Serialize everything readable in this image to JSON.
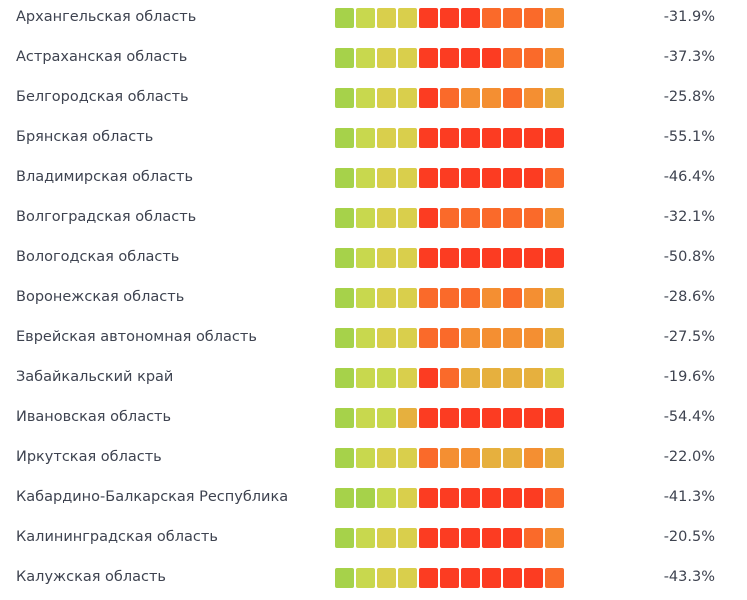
{
  "chart_data": {
    "type": "table",
    "columns": [
      "region",
      "color_scale",
      "change_percent"
    ],
    "palette": {
      "G": "#a6d24a",
      "L": "#c8d84e",
      "Y": "#d9cf4c",
      "A": "#e6b03e",
      "O": "#f48f32",
      "D": "#fa6a2a",
      "R": "#fc3c22"
    },
    "rows": [
      {
        "name": "Архангельская область",
        "value": "-31.9%",
        "change": -31.9,
        "cells": "GLYYRRRDDDO"
      },
      {
        "name": "Астраханская область",
        "value": "-37.3%",
        "change": -37.3,
        "cells": "GLYYRRRRDDO"
      },
      {
        "name": "Белгородская область",
        "value": "-25.8%",
        "change": -25.8,
        "cells": "GLYYRDOODOA"
      },
      {
        "name": "Брянская область",
        "value": "-55.1%",
        "change": -55.1,
        "cells": "GLYYRRRRRRR"
      },
      {
        "name": "Владимирская область",
        "value": "-46.4%",
        "change": -46.4,
        "cells": "GLYYRRRRRRD"
      },
      {
        "name": "Волгоградская область",
        "value": "-32.1%",
        "change": -32.1,
        "cells": "GLYYRDDDDDO"
      },
      {
        "name": "Вологодская область",
        "value": "-50.8%",
        "change": -50.8,
        "cells": "GLYYRRRRRRR"
      },
      {
        "name": "Воронежская область",
        "value": "-28.6%",
        "change": -28.6,
        "cells": "GLYYDDDODOA"
      },
      {
        "name": "Еврейская автономная область",
        "value": "-27.5%",
        "change": -27.5,
        "cells": "GLYYDDOOOOA"
      },
      {
        "name": "Забайкальский край",
        "value": "-19.6%",
        "change": -19.6,
        "cells": "GLLYRDAAAAY"
      },
      {
        "name": "Ивановская область",
        "value": "-54.4%",
        "change": -54.4,
        "cells": "GLLARRRRRRR"
      },
      {
        "name": "Иркутская область",
        "value": "-22.0%",
        "change": -22.0,
        "cells": "GLYYDOOAAOA"
      },
      {
        "name": "Кабардино-Балкарская Республика",
        "value": "-41.3%",
        "change": -41.3,
        "cells": "GGLYRRRRRRD"
      },
      {
        "name": "Калининградская область",
        "value": "-20.5%",
        "change": -20.5,
        "cells": "GLYYRRRRRDO"
      },
      {
        "name": "Калужская область",
        "value": "-43.3%",
        "change": -43.3,
        "cells": "GLYYRRRRRRD"
      }
    ]
  }
}
